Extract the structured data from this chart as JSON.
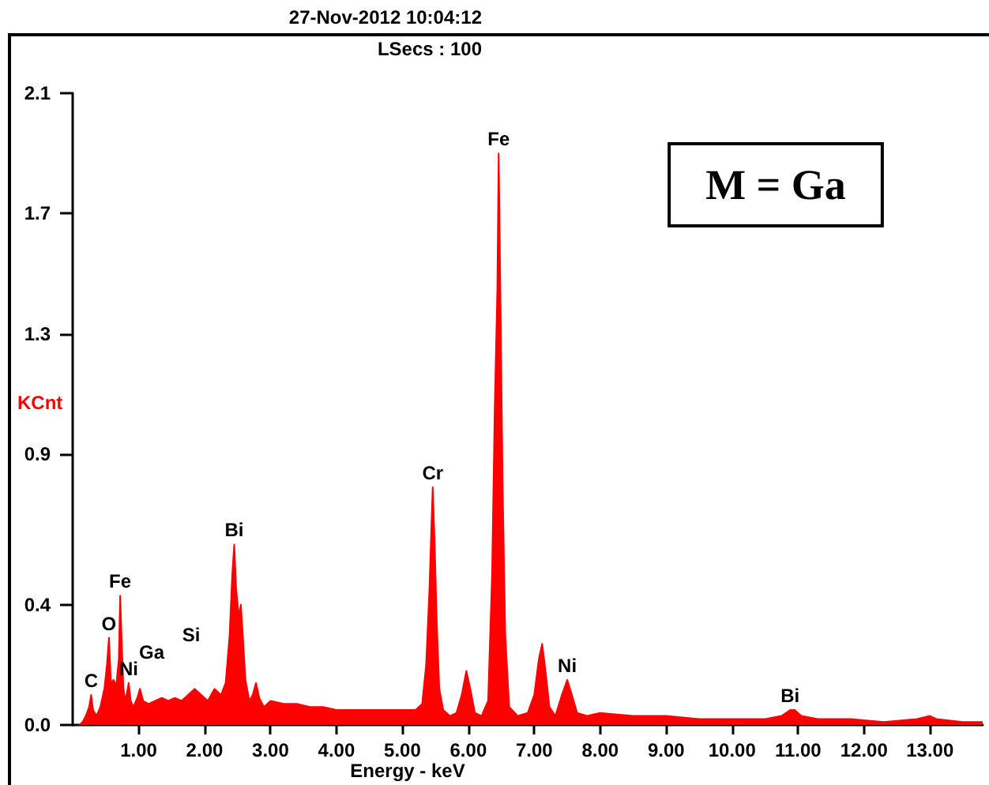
{
  "chart_data": {
    "type": "area",
    "annotations": [
      "27-Nov-2012 10:04:12",
      "LSecs : 100",
      "M = Ga",
      "Ga",
      "Si",
      {
        "text": "C",
        "x": 0.28,
        "y": 0.1
      },
      {
        "text": "O",
        "x": 0.55,
        "y": 0.29
      },
      {
        "text": "Fe",
        "x": 0.72,
        "y": 0.43
      },
      {
        "text": "Ni",
        "x": 0.85,
        "y": 0.14
      },
      {
        "text": "Bi",
        "x": 2.45,
        "y": 0.6
      },
      {
        "text": "Cr",
        "x": 5.46,
        "y": 0.79
      },
      {
        "text": "Fe",
        "x": 6.46,
        "y": 1.9
      },
      {
        "text": "Ni",
        "x": 7.5,
        "y": 0.15
      },
      {
        "text": "Bi",
        "x": 10.88,
        "y": 0.05
      }
    ],
    "xlabel": "Energy - keV",
    "ylabel": "KCnt",
    "x": [
      0.1,
      0.15,
      0.2,
      0.25,
      0.28,
      0.31,
      0.36,
      0.42,
      0.48,
      0.52,
      0.55,
      0.58,
      0.62,
      0.66,
      0.7,
      0.72,
      0.74,
      0.77,
      0.8,
      0.85,
      0.88,
      0.92,
      0.98,
      1.02,
      1.07,
      1.15,
      1.25,
      1.35,
      1.45,
      1.55,
      1.65,
      1.75,
      1.85,
      1.95,
      2.05,
      2.15,
      2.25,
      2.32,
      2.38,
      2.42,
      2.45,
      2.48,
      2.52,
      2.55,
      2.58,
      2.62,
      2.68,
      2.73,
      2.78,
      2.83,
      2.9,
      3.0,
      3.2,
      3.4,
      3.6,
      3.8,
      4.0,
      4.2,
      4.4,
      4.6,
      4.8,
      5.0,
      5.2,
      5.3,
      5.36,
      5.41,
      5.44,
      5.46,
      5.49,
      5.52,
      5.56,
      5.62,
      5.72,
      5.82,
      5.9,
      5.97,
      6.03,
      6.1,
      6.2,
      6.3,
      6.36,
      6.4,
      6.44,
      6.46,
      6.48,
      6.52,
      6.56,
      6.62,
      6.75,
      6.9,
      7.0,
      7.07,
      7.12,
      7.17,
      7.23,
      7.32,
      7.42,
      7.5,
      7.57,
      7.65,
      7.8,
      8.0,
      8.5,
      9.0,
      9.5,
      10.0,
      10.5,
      10.75,
      10.88,
      10.95,
      11.05,
      11.3,
      11.8,
      12.3,
      12.8,
      13.0,
      13.1,
      13.5,
      13.8
    ],
    "series": [
      {
        "color": "#ff0000",
        "values": [
          0,
          0.01,
          0.03,
          0.06,
          0.1,
          0.05,
          0.03,
          0.06,
          0.12,
          0.2,
          0.29,
          0.14,
          0.15,
          0.13,
          0.22,
          0.43,
          0.3,
          0.12,
          0.08,
          0.14,
          0.08,
          0.06,
          0.09,
          0.12,
          0.08,
          0.07,
          0.08,
          0.09,
          0.08,
          0.09,
          0.08,
          0.1,
          0.12,
          0.1,
          0.08,
          0.12,
          0.1,
          0.14,
          0.3,
          0.5,
          0.6,
          0.45,
          0.36,
          0.4,
          0.3,
          0.15,
          0.08,
          0.1,
          0.14,
          0.09,
          0.06,
          0.08,
          0.07,
          0.07,
          0.06,
          0.06,
          0.05,
          0.05,
          0.05,
          0.05,
          0.05,
          0.05,
          0.05,
          0.07,
          0.2,
          0.45,
          0.66,
          0.79,
          0.6,
          0.35,
          0.12,
          0.05,
          0.03,
          0.04,
          0.1,
          0.18,
          0.12,
          0.04,
          0.03,
          0.08,
          0.5,
          1.05,
          1.45,
          1.9,
          1.55,
          0.8,
          0.3,
          0.06,
          0.03,
          0.04,
          0.1,
          0.22,
          0.27,
          0.18,
          0.06,
          0.03,
          0.1,
          0.15,
          0.1,
          0.04,
          0.03,
          0.04,
          0.03,
          0.03,
          0.02,
          0.02,
          0.02,
          0.03,
          0.05,
          0.05,
          0.03,
          0.02,
          0.02,
          0.01,
          0.02,
          0.03,
          0.02,
          0.01,
          0.01
        ]
      }
    ],
    "xlim": [
      0,
      13.8
    ],
    "xticks": [
      {
        "value": 1,
        "label": "1.00"
      },
      {
        "value": 2,
        "label": "2.00"
      },
      {
        "value": 3,
        "label": "3.00"
      },
      {
        "value": 4,
        "label": "4.00"
      },
      {
        "value": 5,
        "label": "5.00"
      },
      {
        "value": 6,
        "label": "6.00"
      },
      {
        "value": 7,
        "label": "7.00"
      },
      {
        "value": 8,
        "label": "8.00"
      },
      {
        "value": 9,
        "label": "9.00"
      },
      {
        "value": 10,
        "label": "10.00"
      },
      {
        "value": 11,
        "label": "11.00"
      },
      {
        "value": 12,
        "label": "12.00"
      },
      {
        "value": 13,
        "label": "13.00"
      }
    ],
    "ylim": [
      0,
      2.1
    ],
    "yticks": [
      {
        "value": 0,
        "label": "0.0"
      },
      0.4,
      0.9,
      1.3,
      1.7,
      2.1
    ],
    "grid": false,
    "marker": "none",
    "line_style": "solid"
  }
}
